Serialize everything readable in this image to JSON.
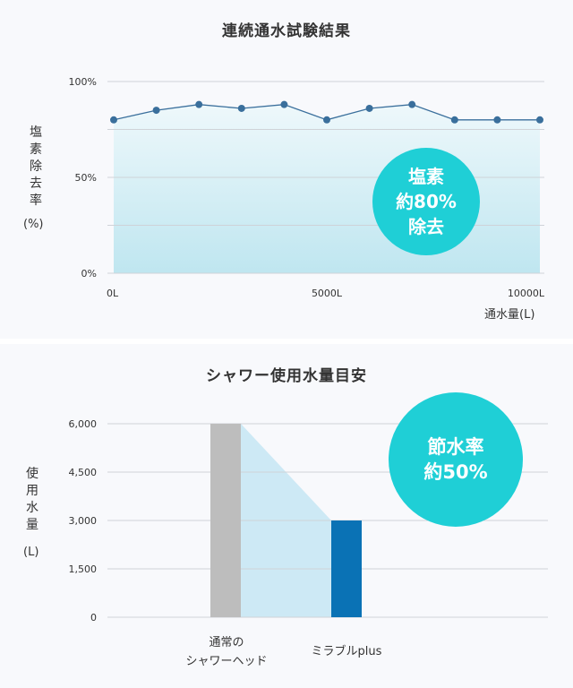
{
  "chart1": {
    "title": "連続通水試験結果",
    "ylabel_chars": [
      "塩",
      "素",
      "除",
      "去",
      "率"
    ],
    "yunit": "(%)",
    "xlabel": "通水量(L)",
    "badge_lines": [
      "塩素",
      "約80%",
      "除去"
    ],
    "colors": {
      "line": "#3a6f9c",
      "badge": "#1fcfd6",
      "area_top": "#eef8fb",
      "area_bottom": "#bfe6f0",
      "grid": "#cfd3d8"
    }
  },
  "chart2": {
    "title": "シャワー使用水量目安",
    "ylabel_chars": [
      "使",
      "用",
      "水",
      "量"
    ],
    "yunit": "(L)",
    "badge_lines": [
      "節水率",
      "約50%"
    ],
    "category_labels": [
      [
        "通常の",
        "シャワーヘッド"
      ],
      [
        "ミラブルplus"
      ]
    ],
    "colors": {
      "bar1": "#bdbdbd",
      "bar2": "#0a72b5",
      "badge": "#1fcfd6",
      "wedge": "#cde9f5",
      "grid": "#cfd3d8"
    }
  },
  "chart_data": [
    {
      "type": "line",
      "title": "連続通水試験結果",
      "ylabel": "塩素除去率 (%)",
      "xlabel": "通水量(L)",
      "ylim": [
        0,
        100
      ],
      "yticks": [
        0,
        50,
        100
      ],
      "ytick_labels": [
        "0%",
        "50%",
        "100%"
      ],
      "xlim": [
        0,
        10000
      ],
      "xticks": [
        0,
        5000,
        10000
      ],
      "xtick_labels": [
        "0L",
        "5000L",
        "10000L"
      ],
      "x": [
        0,
        1000,
        2000,
        3000,
        4000,
        5000,
        6000,
        7000,
        8000,
        9000,
        10000
      ],
      "y": [
        80,
        85,
        88,
        86,
        88,
        80,
        86,
        88,
        80,
        80,
        80
      ],
      "grid": true,
      "area_fill": true
    },
    {
      "type": "bar",
      "title": "シャワー使用水量目安",
      "ylabel": "使用水量 (L)",
      "ylim": [
        0,
        6000
      ],
      "yticks": [
        0,
        1500,
        3000,
        4500,
        6000
      ],
      "ytick_labels": [
        "0",
        "1,500",
        "3,000",
        "4,500",
        "6,000"
      ],
      "categories": [
        "通常のシャワーヘッド",
        "ミラブルplus"
      ],
      "values": [
        6000,
        3000
      ],
      "grid": true
    }
  ]
}
